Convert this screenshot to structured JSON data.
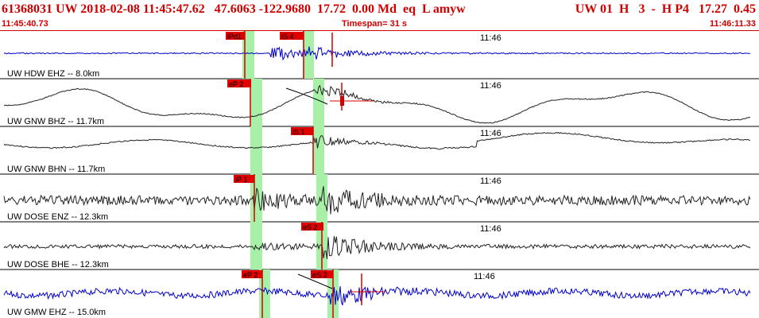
{
  "header": {
    "title_main": "61368031 UW 2018-02-08 11:45:47.62   47.6063 -122.9680  17.72  0.00 Md  eq  L amyw",
    "title_right": "UW 01  H   3  -  H P4   17.27  0.45",
    "start_time": "11:45:40.73",
    "timespan": "Timespan=  31 s",
    "end_time": "11:46:11.33"
  },
  "colors": {
    "accent": "#d00000",
    "blue_trace": "#0000cc",
    "dark_trace": "#222222",
    "pick_window": "#a8f0a8"
  },
  "traces": [
    {
      "label": "UW HDW EHZ -- 8.0km",
      "time_mark": "11:46",
      "color": "blue",
      "picks": [
        {
          "label": "iPd1"
        },
        {
          "label": "iS 4"
        }
      ]
    },
    {
      "label": "UW GNW BHZ -- 11.7km",
      "time_mark": "11:46",
      "color": "dark",
      "picks": [
        {
          "label": "eP 2"
        }
      ]
    },
    {
      "label": "UW GNW BHN -- 11.7km",
      "time_mark": "11:46",
      "color": "dark",
      "picks": [
        {
          "label": "iS 1"
        }
      ]
    },
    {
      "label": "UW DOSE ENZ -- 12.3km",
      "time_mark": "11:46",
      "color": "dark",
      "picks": [
        {
          "label": "iP 1"
        }
      ]
    },
    {
      "label": "UW DOSE BHE -- 12.3km",
      "time_mark": "11:46",
      "color": "dark",
      "picks": [
        {
          "label": "eS 2"
        }
      ]
    },
    {
      "label": "UW GMW EHZ -- 15.0km",
      "time_mark": "11:46",
      "color": "blue",
      "picks": [
        {
          "label": "eP 2"
        },
        {
          "label": "eS 2"
        }
      ]
    }
  ]
}
